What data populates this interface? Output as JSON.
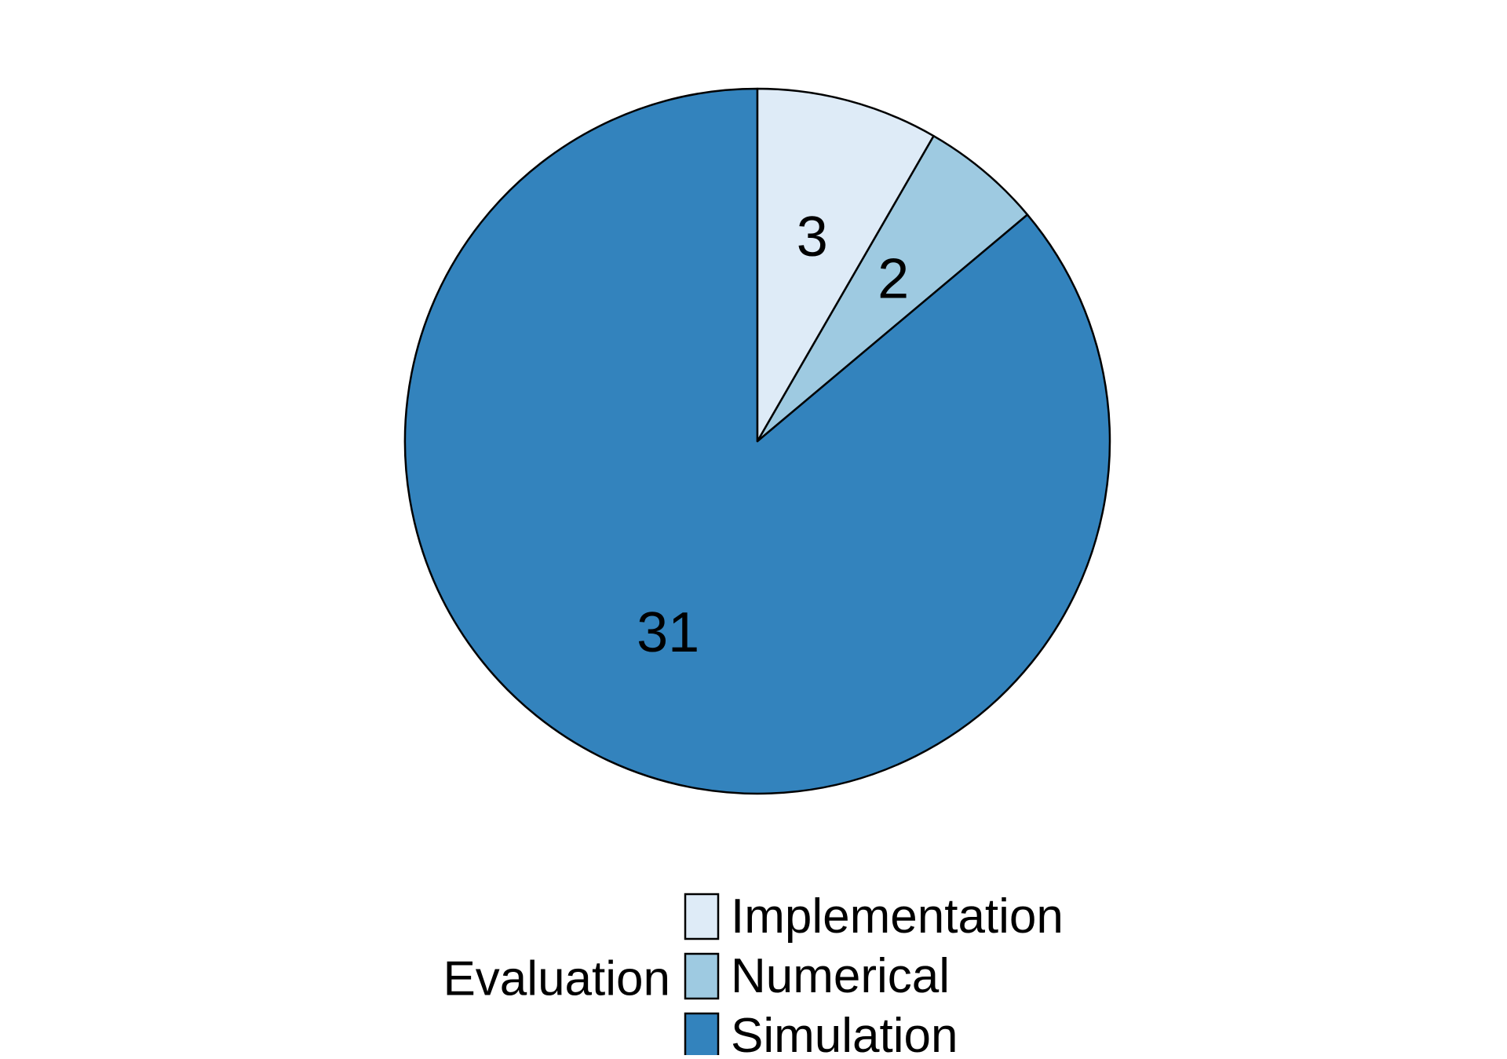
{
  "chart_data": {
    "type": "pie",
    "title": "",
    "start_angle_deg": 90,
    "direction": "counterclockwise",
    "slices": [
      {
        "label": "Simulation",
        "value": 31,
        "color": "#3383bd"
      },
      {
        "label": "Numerical",
        "value": 2,
        "color": "#9ecae1"
      },
      {
        "label": "Implementation",
        "value": 3,
        "color": "#deebf7"
      }
    ],
    "legend": {
      "title": "Evaluation",
      "position": "bottom",
      "order": [
        "Implementation",
        "Numerical",
        "Simulation"
      ]
    },
    "edge_color": "#000000"
  }
}
